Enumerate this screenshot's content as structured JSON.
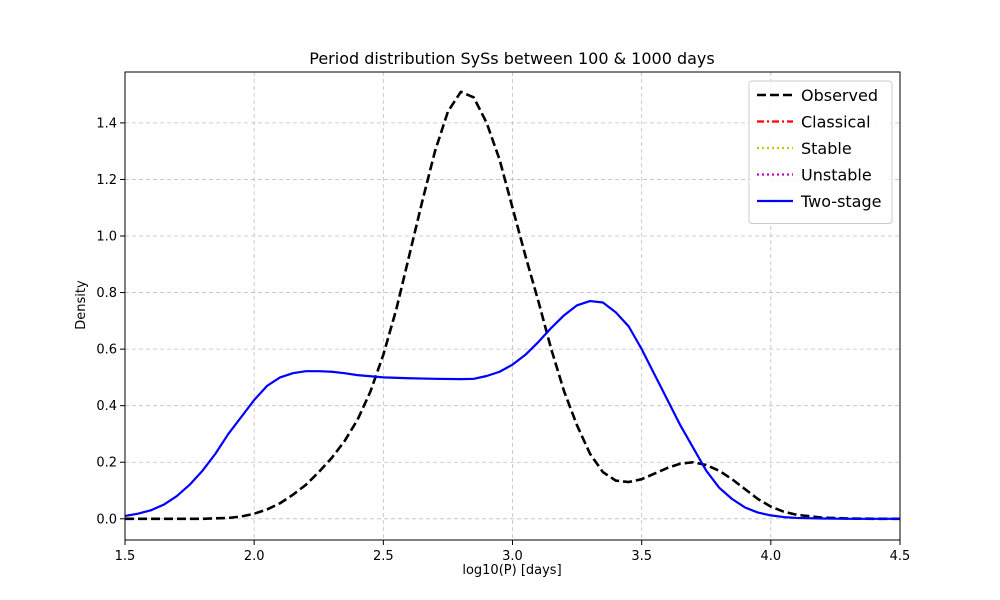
{
  "chart_data": {
    "type": "line",
    "title": "Period distribution SySs between 100 & 1000 days",
    "xlabel": "log10(P) [days]",
    "ylabel": "Density",
    "xlim": [
      1.5,
      4.5
    ],
    "ylim": [
      -0.075,
      1.58
    ],
    "xticks": [
      1.5,
      2.0,
      2.5,
      3.0,
      3.5,
      4.0,
      4.5
    ],
    "yticks": [
      0.0,
      0.2,
      0.4,
      0.6,
      0.8,
      1.0,
      1.2,
      1.4
    ],
    "grid": true,
    "legend_position": "top-right",
    "series": [
      {
        "name": "Observed",
        "color": "#000000",
        "style": "dashed",
        "x": [
          1.5,
          1.6,
          1.7,
          1.8,
          1.9,
          1.95,
          2.0,
          2.05,
          2.1,
          2.15,
          2.2,
          2.25,
          2.3,
          2.35,
          2.4,
          2.45,
          2.5,
          2.55,
          2.6,
          2.65,
          2.7,
          2.75,
          2.8,
          2.85,
          2.9,
          2.95,
          3.0,
          3.05,
          3.1,
          3.15,
          3.2,
          3.25,
          3.3,
          3.35,
          3.4,
          3.45,
          3.5,
          3.55,
          3.6,
          3.65,
          3.7,
          3.75,
          3.8,
          3.85,
          3.9,
          3.95,
          4.0,
          4.05,
          4.1,
          4.2,
          4.3,
          4.4,
          4.5
        ],
        "y": [
          0.0,
          0.0,
          0.0,
          0.0,
          0.003,
          0.008,
          0.018,
          0.033,
          0.055,
          0.085,
          0.12,
          0.165,
          0.215,
          0.275,
          0.35,
          0.45,
          0.58,
          0.74,
          0.93,
          1.12,
          1.3,
          1.44,
          1.51,
          1.49,
          1.4,
          1.27,
          1.1,
          0.93,
          0.77,
          0.6,
          0.45,
          0.33,
          0.23,
          0.165,
          0.135,
          0.13,
          0.14,
          0.16,
          0.18,
          0.195,
          0.2,
          0.19,
          0.17,
          0.14,
          0.105,
          0.07,
          0.043,
          0.025,
          0.014,
          0.004,
          0.001,
          0.0,
          0.0
        ]
      },
      {
        "name": "Classical",
        "color": "#ff0000",
        "style": "dashdot",
        "x": [],
        "y": []
      },
      {
        "name": "Stable",
        "color": "#c8c800",
        "style": "dotted",
        "x": [],
        "y": []
      },
      {
        "name": "Unstable",
        "color": "#c000c0",
        "style": "dotted",
        "x": [],
        "y": []
      },
      {
        "name": "Two-stage",
        "color": "#0000ff",
        "style": "solid",
        "x": [
          1.5,
          1.55,
          1.6,
          1.65,
          1.7,
          1.75,
          1.8,
          1.85,
          1.9,
          1.95,
          2.0,
          2.05,
          2.1,
          2.15,
          2.2,
          2.25,
          2.3,
          2.35,
          2.4,
          2.5,
          2.6,
          2.7,
          2.8,
          2.85,
          2.9,
          2.95,
          3.0,
          3.05,
          3.1,
          3.15,
          3.2,
          3.25,
          3.3,
          3.35,
          3.4,
          3.45,
          3.5,
          3.55,
          3.6,
          3.65,
          3.7,
          3.75,
          3.8,
          3.85,
          3.9,
          3.95,
          4.0,
          4.05,
          4.1,
          4.2,
          4.3,
          4.4,
          4.5
        ],
        "y": [
          0.01,
          0.018,
          0.03,
          0.05,
          0.08,
          0.12,
          0.17,
          0.23,
          0.3,
          0.36,
          0.42,
          0.47,
          0.5,
          0.515,
          0.522,
          0.522,
          0.52,
          0.515,
          0.508,
          0.5,
          0.497,
          0.495,
          0.494,
          0.495,
          0.505,
          0.52,
          0.545,
          0.58,
          0.625,
          0.675,
          0.72,
          0.755,
          0.77,
          0.765,
          0.73,
          0.68,
          0.6,
          0.51,
          0.42,
          0.33,
          0.25,
          0.17,
          0.11,
          0.07,
          0.04,
          0.022,
          0.012,
          0.006,
          0.003,
          0.001,
          0.0,
          0.0,
          0.0
        ]
      }
    ]
  }
}
